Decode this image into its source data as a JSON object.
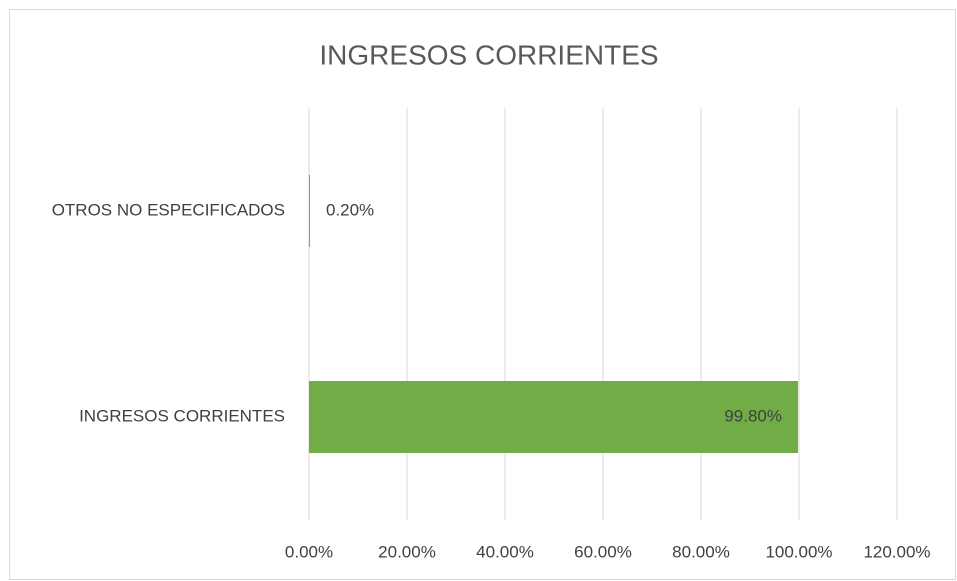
{
  "chart_data": {
    "type": "hbar",
    "title": "INGRESOS CORRIENTES",
    "categories": [
      "OTROS NO ESPECIFICADOS",
      "INGRESOS CORRIENTES"
    ],
    "values": [
      0.2,
      99.8
    ],
    "value_labels": [
      "0.20%",
      "99.80%"
    ],
    "color": "#70ad47",
    "xlim": [
      0,
      120
    ],
    "xticks": [
      {
        "value": 0,
        "label": "0.00%"
      },
      {
        "value": 20,
        "label": "20.00%"
      },
      {
        "value": 40,
        "label": "40.00%"
      },
      {
        "value": 60,
        "label": "60.00%"
      },
      {
        "value": 80,
        "label": "80.00%"
      },
      {
        "value": 100,
        "label": "100.00%"
      },
      {
        "value": 120,
        "label": "120.00%"
      }
    ],
    "grid": true
  }
}
